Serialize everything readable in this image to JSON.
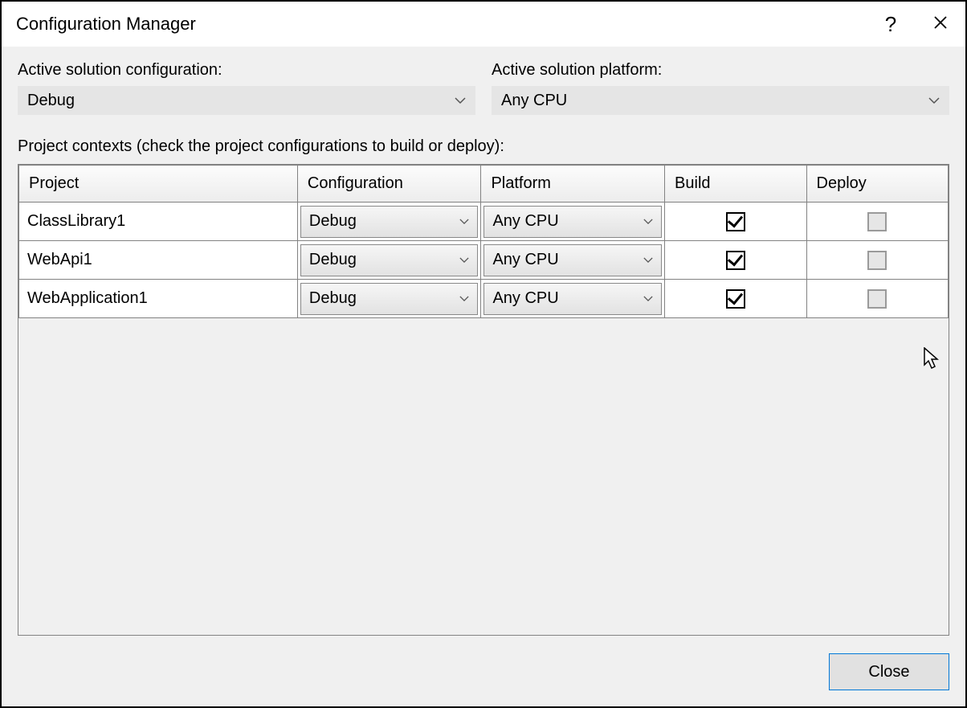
{
  "window": {
    "title": "Configuration Manager",
    "help_icon": "?",
    "close_icon": "×"
  },
  "solution_config": {
    "label": "Active solution configuration:",
    "value": "Debug"
  },
  "solution_platform": {
    "label": "Active solution platform:",
    "value": "Any CPU"
  },
  "contexts_label": "Project contexts (check the project configurations to build or deploy):",
  "columns": {
    "project": "Project",
    "configuration": "Configuration",
    "platform": "Platform",
    "build": "Build",
    "deploy": "Deploy"
  },
  "col_widths": {
    "project": "346px",
    "configuration": "228px",
    "platform": "228px",
    "build": "176px",
    "deploy": "176px"
  },
  "rows": [
    {
      "project": "ClassLibrary1",
      "configuration": "Debug",
      "platform": "Any CPU",
      "build": true,
      "deploy_enabled": false
    },
    {
      "project": "WebApi1",
      "configuration": "Debug",
      "platform": "Any CPU",
      "build": true,
      "deploy_enabled": false
    },
    {
      "project": "WebApplication1",
      "configuration": "Debug",
      "platform": "Any CPU",
      "build": true,
      "deploy_enabled": false
    }
  ],
  "footer": {
    "close_label": "Close"
  },
  "colors": {
    "body_bg": "#f0f0f0",
    "border": "#828282",
    "dropdown_bg": "#e5e5e5",
    "btn_bg": "#e1e1e1",
    "btn_border": "#0078d7"
  }
}
